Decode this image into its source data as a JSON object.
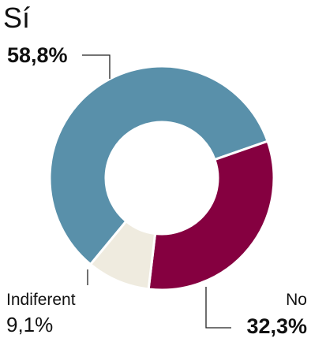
{
  "chart_data": {
    "type": "pie",
    "style": "donut",
    "slices": [
      {
        "name": "Sí",
        "value": 58.8,
        "label": "58,8%",
        "color": "#5990aa"
      },
      {
        "name": "No",
        "value": 32.3,
        "label": "32,3%",
        "color": "#850040"
      },
      {
        "name": "Indiferent",
        "value": 9.1,
        "label": "9,1%",
        "color": "#efebdf"
      }
    ],
    "separator_color": "#ffffff",
    "leader_color": "#222222"
  }
}
